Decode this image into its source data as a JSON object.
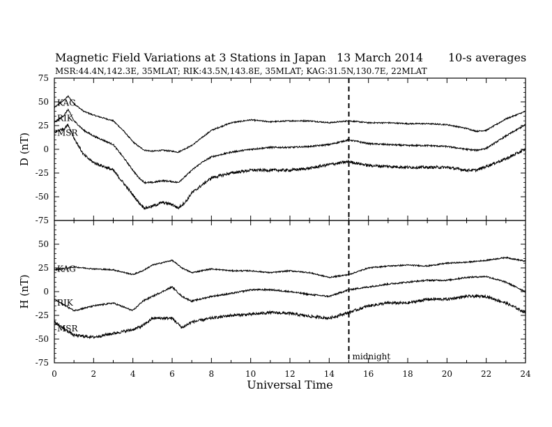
{
  "header": {
    "title": "Magnetic Field Variations at 3 Stations in Japan",
    "date": "13 March 2014",
    "averaging": "10-s averages",
    "stations_line": "MSR:44.4N,142.3E, 35MLAT;  RIK:43.5N,143.8E, 35MLAT;  KAG:31.5N,130.7E, 22MLAT"
  },
  "chart_data": [
    {
      "type": "line",
      "panel": "D",
      "ylabel": "D (nT)",
      "ylim": [
        -75,
        75
      ],
      "yticks": [
        -75,
        -50,
        -25,
        0,
        25,
        50,
        75
      ],
      "xlim": [
        0,
        24
      ],
      "grid": false,
      "series": [
        {
          "name": "KAG",
          "x": [
            0,
            0.5,
            0.7,
            1,
            1.5,
            2,
            3,
            3.5,
            4,
            4.3,
            4.6,
            5,
            5.5,
            6,
            6.3,
            6.7,
            7,
            7.5,
            8,
            9,
            10,
            11,
            12,
            13,
            14,
            15,
            16,
            17,
            18,
            19,
            20,
            21,
            21.5,
            22,
            23,
            24
          ],
          "y": [
            44,
            52,
            56,
            48,
            40,
            36,
            30,
            20,
            8,
            3,
            -1,
            -2,
            -1,
            -2,
            -3,
            1,
            4,
            12,
            20,
            28,
            31,
            29,
            30,
            30,
            28,
            30,
            28,
            28,
            27,
            27,
            26,
            22,
            19,
            20,
            32,
            40
          ]
        },
        {
          "name": "RIK",
          "x": [
            0,
            0.5,
            0.7,
            1,
            1.5,
            2,
            3,
            3.5,
            4,
            4.3,
            4.6,
            5,
            5.5,
            6,
            6.3,
            6.7,
            7,
            7.5,
            8,
            9,
            10,
            11,
            12,
            13,
            14,
            15,
            16,
            17,
            18,
            19,
            20,
            21,
            21.5,
            22,
            23,
            24
          ],
          "y": [
            28,
            36,
            42,
            30,
            20,
            14,
            5,
            -8,
            -22,
            -30,
            -35,
            -35,
            -33,
            -34,
            -35,
            -28,
            -22,
            -14,
            -8,
            -3,
            0,
            2,
            2,
            3,
            5,
            10,
            6,
            5,
            4,
            4,
            3,
            0,
            -1,
            1,
            14,
            26
          ]
        },
        {
          "name": "MSR",
          "x": [
            0,
            0.5,
            0.7,
            1,
            1.5,
            2,
            3,
            3.5,
            4,
            4.3,
            4.6,
            5,
            5.5,
            6,
            6.3,
            6.7,
            7,
            7.5,
            8,
            9,
            10,
            11,
            12,
            13,
            14,
            15,
            16,
            17,
            18,
            19,
            20,
            21,
            21.5,
            22,
            23,
            24
          ],
          "y": [
            18,
            22,
            26,
            12,
            -6,
            -14,
            -22,
            -35,
            -48,
            -56,
            -62,
            -60,
            -56,
            -58,
            -62,
            -55,
            -46,
            -38,
            -30,
            -25,
            -22,
            -22,
            -22,
            -20,
            -16,
            -13,
            -17,
            -18,
            -19,
            -19,
            -19,
            -22,
            -22,
            -18,
            -10,
            0
          ]
        }
      ],
      "annotations": [
        {
          "text": "midnight",
          "x": 15
        }
      ]
    },
    {
      "type": "line",
      "panel": "H",
      "ylabel": "H (nT)",
      "xlabel": "Universal Time",
      "ylim": [
        -75,
        75
      ],
      "yticks": [
        -75,
        -50,
        -25,
        0,
        25,
        50
      ],
      "xlim": [
        0,
        24
      ],
      "xticks": [
        0,
        2,
        4,
        6,
        8,
        10,
        12,
        14,
        16,
        18,
        20,
        22,
        24
      ],
      "grid": false,
      "series": [
        {
          "name": "KAG",
          "x": [
            0,
            1,
            2,
            3,
            4,
            4.5,
            5,
            6,
            6.5,
            7,
            8,
            9,
            10,
            11,
            12,
            13,
            14,
            15,
            16,
            17,
            18,
            19,
            20,
            21,
            22,
            23,
            24
          ],
          "y": [
            23,
            26,
            24,
            23,
            18,
            22,
            28,
            33,
            25,
            20,
            24,
            22,
            22,
            20,
            22,
            20,
            15,
            18,
            25,
            27,
            28,
            27,
            30,
            31,
            33,
            36,
            32
          ]
        },
        {
          "name": "RIK",
          "x": [
            0,
            1,
            2,
            3,
            4,
            4.5,
            5,
            6,
            6.5,
            7,
            8,
            9,
            10,
            11,
            12,
            13,
            14,
            15,
            16,
            17,
            18,
            19,
            20,
            21,
            22,
            23,
            24
          ],
          "y": [
            -8,
            -20,
            -15,
            -12,
            -20,
            -10,
            -5,
            5,
            -5,
            -10,
            -5,
            -2,
            2,
            2,
            0,
            -3,
            -5,
            2,
            5,
            8,
            10,
            12,
            12,
            15,
            16,
            10,
            0
          ]
        },
        {
          "name": "MSR",
          "x": [
            0,
            1,
            2,
            3,
            4,
            4.5,
            5,
            6,
            6.5,
            7,
            8,
            9,
            10,
            11,
            12,
            13,
            14,
            15,
            16,
            17,
            18,
            19,
            20,
            21,
            22,
            23,
            24
          ],
          "y": [
            -32,
            -46,
            -48,
            -44,
            -40,
            -36,
            -28,
            -28,
            -38,
            -32,
            -28,
            -25,
            -24,
            -22,
            -23,
            -26,
            -28,
            -22,
            -15,
            -12,
            -12,
            -8,
            -8,
            -5,
            -5,
            -12,
            -22
          ]
        }
      ],
      "annotations": [
        {
          "text": "midnight",
          "x": 15
        }
      ]
    }
  ]
}
